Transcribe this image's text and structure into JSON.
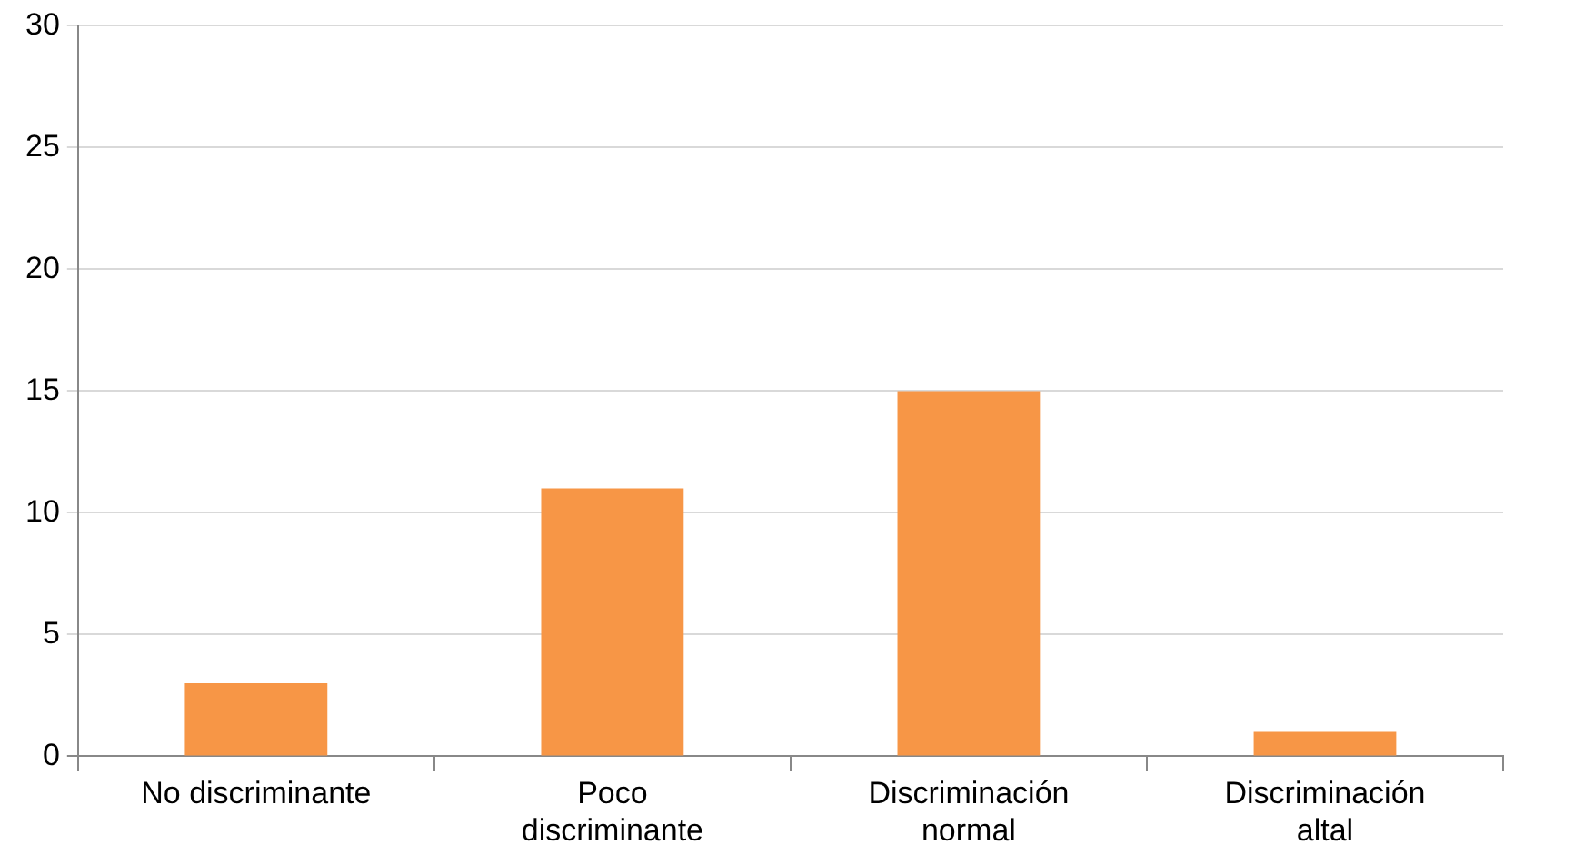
{
  "chart_data": {
    "type": "bar",
    "categories": [
      "No discriminante",
      "Poco discriminante",
      "Discriminación normal",
      "Discriminación altal"
    ],
    "values": [
      3,
      11,
      15,
      1
    ],
    "color": "#f79646",
    "ylim": [
      0,
      30
    ],
    "yticks": [
      0,
      5,
      10,
      15,
      20,
      25,
      30
    ],
    "grid": "y",
    "legend": false
  }
}
